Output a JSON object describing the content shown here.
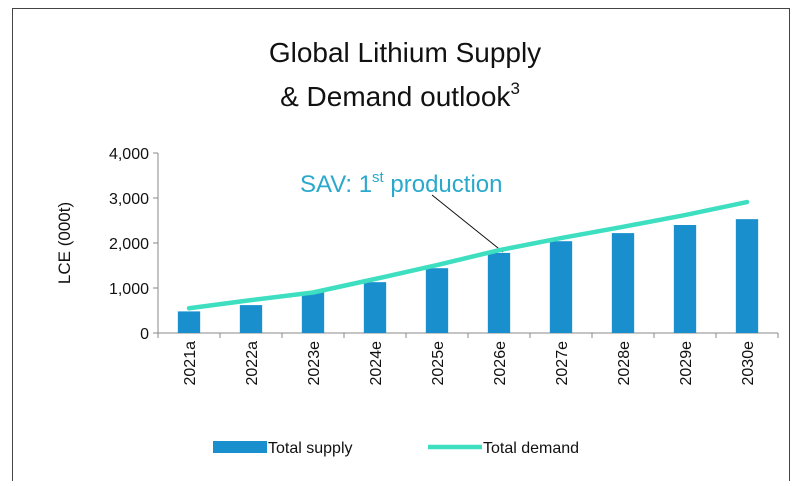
{
  "chart_data": {
    "type": "bar-line",
    "title": [
      "Global Lithium Supply",
      "& Demand outlook",
      "3"
    ],
    "annotation": [
      "SAV: 1",
      "st",
      " production"
    ],
    "y_label": "LCE (000t)",
    "categories": [
      "2021a",
      "2022a",
      "2023e",
      "2024e",
      "2025e",
      "2026e",
      "2027e",
      "2028e",
      "2029e",
      "2030e"
    ],
    "series": [
      {
        "name": "Total supply",
        "type": "bar",
        "color": "#1a8fce",
        "values": [
          480,
          620,
          910,
          1130,
          1440,
          1780,
          2040,
          2220,
          2400,
          2530
        ]
      },
      {
        "name": "Total demand",
        "type": "line",
        "color": "#3ddfc0",
        "values": [
          550,
          730,
          900,
          1200,
          1510,
          1840,
          2110,
          2360,
          2620,
          2910
        ]
      }
    ],
    "ylim": [
      0,
      4000
    ],
    "yticks": [
      0,
      {
        "value": 1000,
        "label": "1,000"
      },
      {
        "value": 2000,
        "label": "2,000"
      },
      {
        "value": 3000,
        "label": "3,000"
      },
      {
        "value": 4000,
        "label": "4,000"
      }
    ],
    "legend": "bottom"
  }
}
